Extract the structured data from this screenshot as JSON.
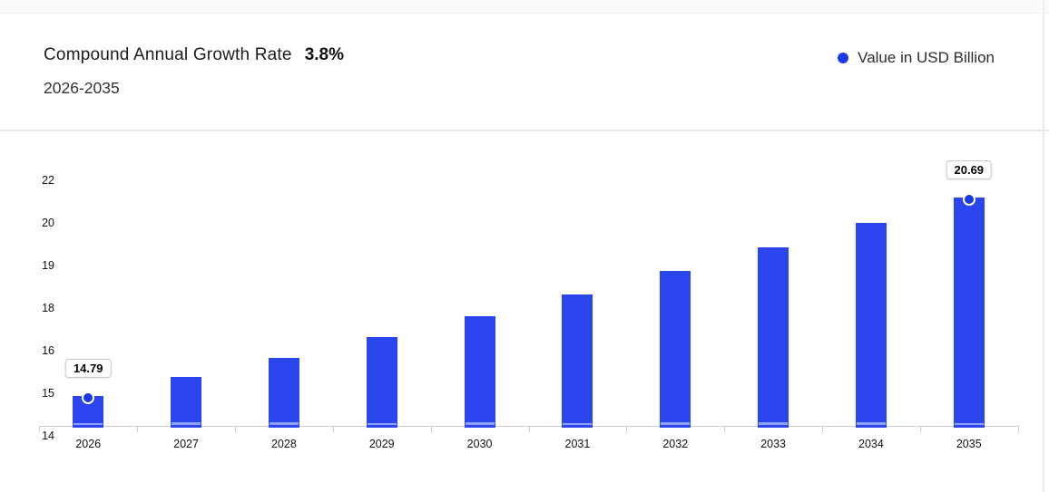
{
  "header": {
    "title": "Compound Annual Growth Rate",
    "title_value": "3.8%",
    "subtitle": "2026-2035"
  },
  "legend": {
    "label": "Value in USD Billion",
    "dot_color": "#1c3be8"
  },
  "colors": {
    "bar": "#2b46ef",
    "bar_bottom_stripe": "#8fa1f3",
    "marker": "#1a38e8",
    "axis_line": "#cccccc",
    "tick_text": "#111111"
  },
  "chart_data": {
    "type": "bar",
    "title": "Compound Annual Growth Rate 3.8%",
    "subtitle": "2026-2035",
    "unit": "USD Billion",
    "legend": [
      "Value in USD Billion"
    ],
    "legend_position": "top-right",
    "grid": false,
    "categories": [
      "2026",
      "2027",
      "2028",
      "2029",
      "2030",
      "2031",
      "2032",
      "2033",
      "2034",
      "2035"
    ],
    "values": [
      14.79,
      15.35,
      15.93,
      16.54,
      17.17,
      17.82,
      18.5,
      19.2,
      19.93,
      20.69
    ],
    "shown_data_labels": [
      {
        "category": "2026",
        "label": "14.79"
      },
      {
        "category": "2035",
        "label": "20.69"
      }
    ],
    "marked_points": [
      "2026",
      "2035"
    ],
    "y_tick_labels_top_to_bottom": [
      "22",
      "20",
      "19",
      "18",
      "16",
      "15",
      "14"
    ],
    "ylim": [
      14,
      22
    ],
    "xlabel": "",
    "ylabel": ""
  }
}
